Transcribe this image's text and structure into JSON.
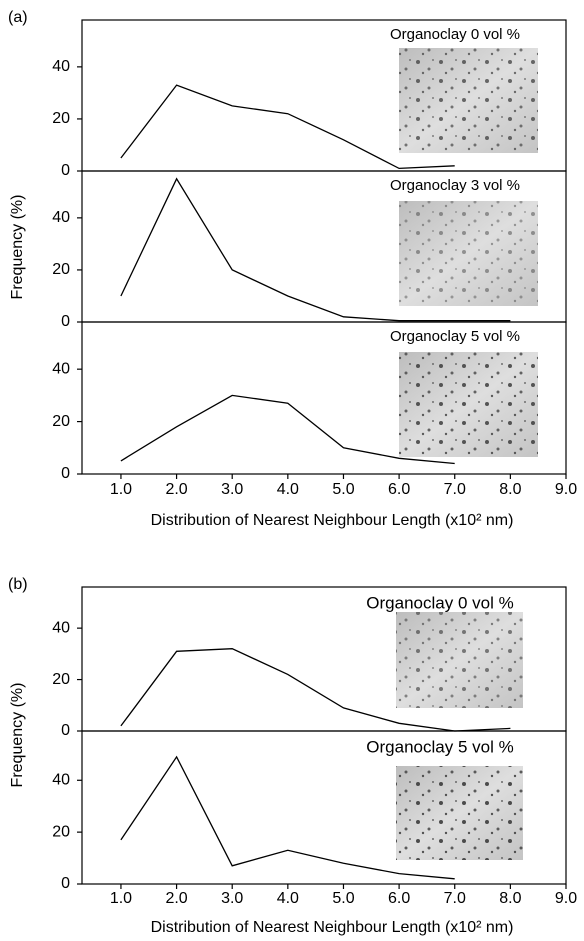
{
  "panels": [
    {
      "label": "(a)",
      "ylabel": "Frequency (%)",
      "xlabel": "Distribution of Nearest Neighbour Length (x10² nm)"
    },
    {
      "label": "(b)",
      "ylabel": "Frequency (%)",
      "xlabel": "Distribution of Nearest Neighbour Length (x10² nm)"
    }
  ],
  "chart_data": [
    {
      "type": "line",
      "title": "Organoclay 0 vol %",
      "x": [
        1,
        2,
        3,
        4,
        5,
        6,
        7
      ],
      "values": [
        5,
        33,
        25,
        22,
        12,
        1,
        2
      ],
      "color": "#000000",
      "xlim": [
        0.3,
        9.0
      ],
      "ylim": [
        0,
        58
      ],
      "yticks": [
        0,
        20,
        40
      ]
    },
    {
      "type": "line",
      "title": "Organoclay 3 vol %",
      "x": [
        1,
        2,
        3,
        4,
        5,
        6,
        7,
        8
      ],
      "values": [
        10,
        55,
        20,
        10,
        2,
        0.5,
        0.5,
        0.5
      ],
      "color": "#000000",
      "xlim": [
        0.3,
        9.0
      ],
      "ylim": [
        0,
        58
      ],
      "yticks": [
        0,
        20,
        40
      ]
    },
    {
      "type": "line",
      "title": "Organoclay 5 vol %",
      "x": [
        1,
        2,
        3,
        4,
        5,
        6,
        7
      ],
      "values": [
        5,
        18,
        30,
        27,
        10,
        6,
        4
      ],
      "color": "#000000",
      "xlim": [
        0.3,
        9.0
      ],
      "ylim": [
        0,
        58
      ],
      "yticks": [
        0,
        20,
        40
      ],
      "xticks": [
        {
          "value": 1,
          "label": "1.0"
        },
        {
          "value": 2,
          "label": "2.0"
        },
        {
          "value": 3,
          "label": "3.0"
        },
        {
          "value": 4,
          "label": "4.0"
        },
        {
          "value": 5,
          "label": "5.0"
        },
        {
          "value": 6,
          "label": "6.0"
        },
        {
          "value": 7,
          "label": "7.0"
        },
        {
          "value": 8,
          "label": "8.0"
        },
        {
          "value": 9,
          "label": "9.0"
        }
      ]
    },
    {
      "type": "line",
      "title": "Organoclay 0 vol %",
      "x": [
        1,
        2,
        3,
        4,
        5,
        6,
        7,
        8
      ],
      "values": [
        2,
        31,
        32,
        22,
        9,
        3,
        0,
        1
      ],
      "color": "#000000",
      "xlim": [
        0.3,
        9.0
      ],
      "ylim": [
        0,
        56
      ],
      "yticks": [
        0,
        20,
        40
      ]
    },
    {
      "type": "line",
      "title": "Organoclay 5 vol %",
      "x": [
        1,
        2,
        3,
        4,
        5,
        6,
        7
      ],
      "values": [
        17,
        49,
        7,
        13,
        8,
        4,
        2
      ],
      "color": "#000000",
      "xlim": [
        0.3,
        9.0
      ],
      "ylim": [
        0,
        59
      ],
      "yticks": [
        0,
        20,
        40
      ],
      "xticks": [
        {
          "value": 1,
          "label": "1.0"
        },
        {
          "value": 2,
          "label": "2.0"
        },
        {
          "value": 3,
          "label": "3.0"
        },
        {
          "value": 4,
          "label": "4.0"
        },
        {
          "value": 5,
          "label": "5.0"
        },
        {
          "value": 6,
          "label": "6.0"
        },
        {
          "value": 7,
          "label": "7.0"
        },
        {
          "value": 8,
          "label": "8.0"
        },
        {
          "value": 9,
          "label": "9.0"
        }
      ]
    }
  ]
}
